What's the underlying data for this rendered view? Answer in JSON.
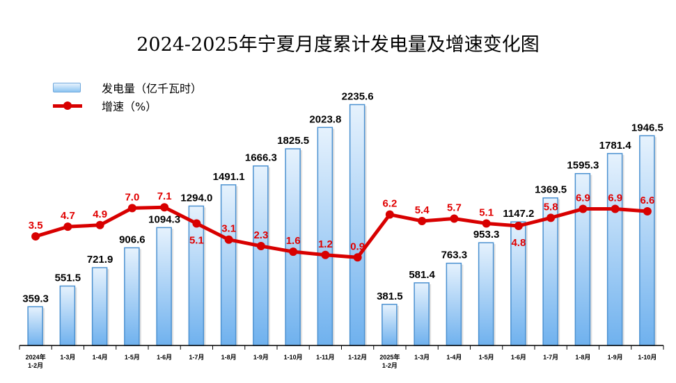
{
  "chart_data": {
    "type": "bar+line",
    "title": "2024-2025年宁夏月度累计发电量及增速变化图",
    "categories": [
      "2024年1-2月",
      "1-3月",
      "1-4月",
      "1-5月",
      "1-6月",
      "1-7月",
      "1-8月",
      "1-9月",
      "1-10月",
      "1-11月",
      "1-12月",
      "2025年1-2月",
      "1-3月",
      "1-4月",
      "1-5月",
      "1-6月",
      "1-7月",
      "1-8月",
      "1-9月",
      "1-10月"
    ],
    "series": [
      {
        "name": "发电量（亿千瓦时）",
        "type": "bar",
        "axis": "left",
        "values": [
          359.3,
          551.5,
          721.9,
          906.6,
          1094.3,
          1294.0,
          1491.1,
          1666.3,
          1825.5,
          2023.8,
          2235.6,
          381.5,
          581.4,
          763.3,
          953.3,
          1147.2,
          1369.5,
          1595.3,
          1781.4,
          1946.5
        ],
        "color": "#7ab8ee"
      },
      {
        "name": "增速（%）",
        "type": "line",
        "axis": "right",
        "values": [
          3.5,
          4.7,
          4.9,
          7.0,
          7.1,
          5.1,
          3.1,
          2.3,
          1.6,
          1.2,
          0.9,
          6.2,
          5.4,
          5.7,
          5.1,
          4.8,
          5.8,
          6.9,
          6.9,
          6.6
        ],
        "color": "#d80000"
      }
    ],
    "ylim_left": [
      0,
      2400
    ],
    "ylim_right": [
      -10,
      22
    ],
    "axes_visible": false,
    "grid": false,
    "legend": "top-left",
    "label_color_bar": "#000000",
    "label_color_line": "#e00000"
  }
}
